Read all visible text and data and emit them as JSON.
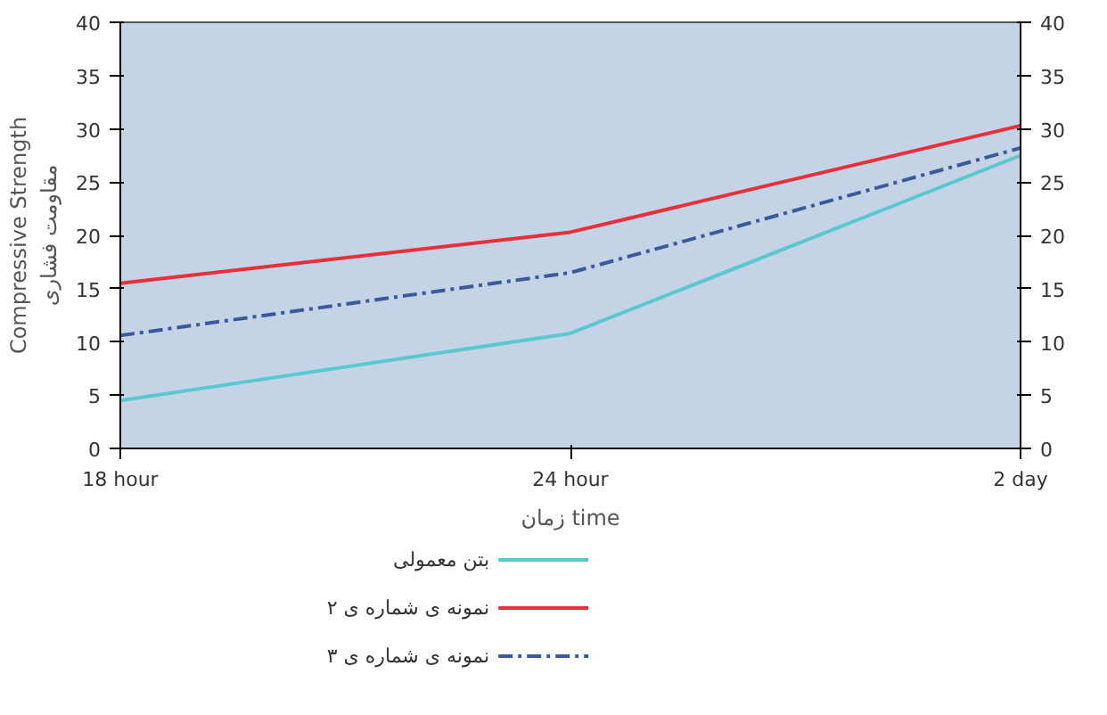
{
  "chart_data": {
    "type": "line",
    "categories": [
      "18 hour",
      "24 hour",
      "2 day"
    ],
    "xlabel": "زمان time",
    "ylabel": "Compressive Strength\nمقاومت فشاری",
    "ylim": [
      0,
      40
    ],
    "yticks": [
      0,
      5,
      10,
      15,
      20,
      25,
      30,
      35,
      40
    ],
    "y2lim": [
      0,
      40
    ],
    "y2ticks": [
      0,
      5,
      10,
      15,
      20,
      25,
      30,
      35,
      40
    ],
    "grid": false,
    "legend": "bottom left",
    "series": [
      {
        "name": "بتن معمولی",
        "color": "#5bc8d0",
        "values": [
          4.5,
          10.8,
          27.5
        ],
        "line_style": "solid"
      },
      {
        "name": "نمونه ی شماره ی ۲",
        "color": "#e8303a",
        "values": [
          15.5,
          20.3,
          30.3
        ],
        "line_style": "solid"
      },
      {
        "name": "نمونه ی شماره ی ۳",
        "color": "#3a5a9a",
        "values": [
          10.6,
          16.5,
          28.2
        ],
        "line_style": "dashed"
      }
    ]
  }
}
